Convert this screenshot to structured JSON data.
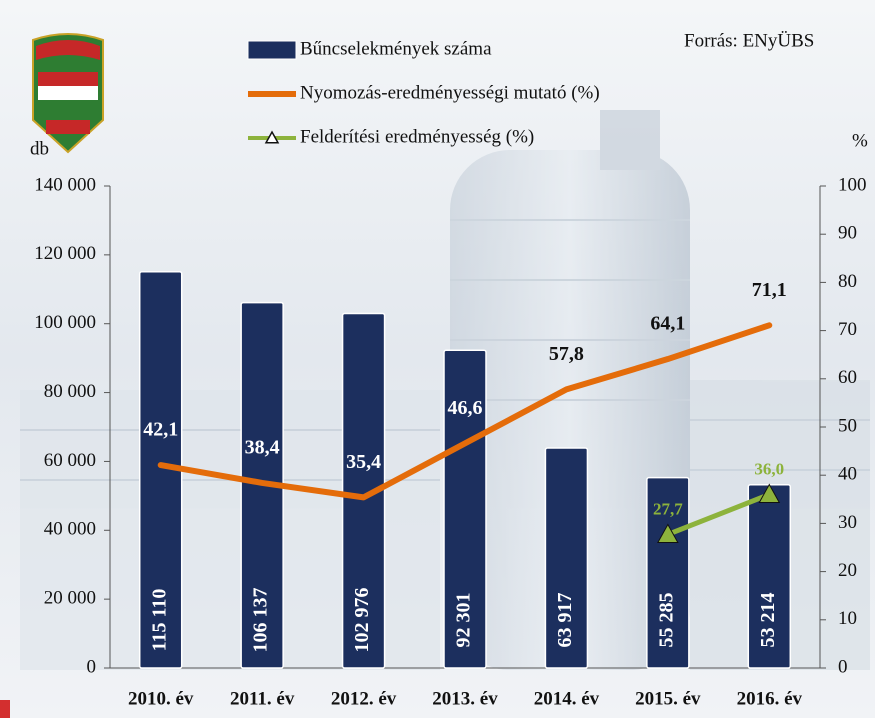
{
  "chart_data": {
    "type": "bar",
    "source": "Forrás: ENyÜBS",
    "y_label": "db",
    "y2_label": "%",
    "categories": [
      "2010. év",
      "2011. év",
      "2012. év",
      "2013. év",
      "2014. év",
      "2015. év",
      "2016. év"
    ],
    "series": [
      {
        "name": "Bűncselekmények száma",
        "type": "bar",
        "color": "#1c2f5e",
        "values": [
          115110,
          106137,
          102976,
          92301,
          63917,
          55285,
          53214
        ],
        "value_labels": [
          "115 110",
          "106 137",
          "102 976",
          "92 301",
          "63 917",
          "55 285",
          "53 214"
        ]
      },
      {
        "name": "Nyomozás-eredményességi mutató (%)",
        "type": "line",
        "axis": "y2",
        "color": "#e46c0a",
        "values": [
          42.1,
          38.4,
          35.4,
          46.6,
          57.8,
          64.1,
          71.1
        ],
        "value_labels": [
          "42,1",
          "38,4",
          "35,4",
          "46,6",
          "57,8",
          "64,1",
          "71,1"
        ],
        "value_label_colors": [
          "#ffffff",
          "#ffffff",
          "#ffffff",
          "#ffffff",
          "#111111",
          "#111111",
          "#111111"
        ]
      },
      {
        "name": "Felderítési eredményesség (%)",
        "type": "line",
        "axis": "y2",
        "color": "#8db33c",
        "marker": "triangle",
        "values": [
          null,
          null,
          null,
          null,
          null,
          27.7,
          36.0
        ],
        "value_labels": [
          null,
          null,
          null,
          null,
          null,
          "27,7",
          "36,0"
        ]
      }
    ],
    "ylim": [
      0,
      140000
    ],
    "yticks": [
      {
        "value": 0,
        "label": "0"
      },
      {
        "value": 20000,
        "label": "20 000"
      },
      {
        "value": 40000,
        "label": "40 000"
      },
      {
        "value": 60000,
        "label": "60 000"
      },
      {
        "value": 80000,
        "label": "80 000"
      },
      {
        "value": 100000,
        "label": "100 000"
      },
      {
        "value": 120000,
        "label": "120 000"
      },
      {
        "value": 140000,
        "label": "140 000"
      }
    ],
    "y2lim": [
      0,
      100
    ],
    "y2ticks": [
      0,
      10,
      20,
      30,
      40,
      50,
      60,
      70,
      80,
      90,
      100
    ],
    "grid": false
  }
}
